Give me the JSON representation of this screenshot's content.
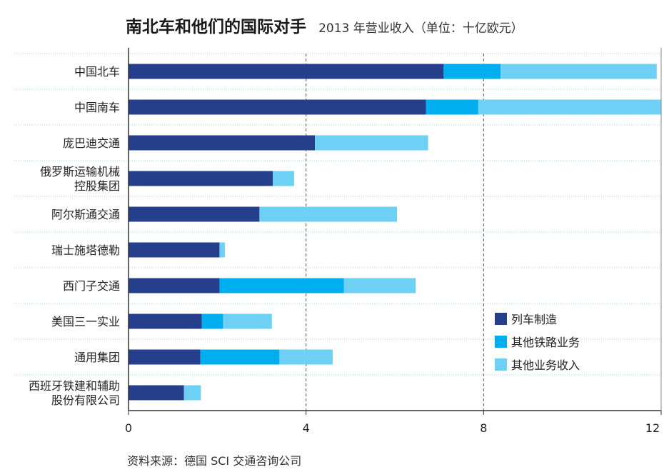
{
  "title": "南北车和他们的国际对手",
  "subtitle": "2013 年营业收入（单位：十亿欧元）",
  "source": "资料来源：德国 SCI 交通咨询公司",
  "colors": {
    "train": "#253f8c",
    "rail": "#00aeef",
    "other": "#6fd0f6",
    "grid": "#9dd6ee",
    "axis": "#333333"
  },
  "chart_data": {
    "type": "bar",
    "orientation": "horizontal",
    "stacked": true,
    "title": "南北车和他们的国际对手",
    "subtitle": "2013 年营业收入（单位：十亿欧元）",
    "xlim": [
      0,
      12
    ],
    "xticks": [
      "0",
      "4",
      "8",
      "12"
    ],
    "xtick_values": [
      0,
      4,
      8,
      12
    ],
    "legend_position": "bottom-right",
    "categories": [
      [
        "中国北车"
      ],
      [
        "中国南车"
      ],
      [
        "庞巴迪交通"
      ],
      [
        "俄罗斯运输机械",
        "控股集团"
      ],
      [
        "阿尔斯通交通"
      ],
      [
        "瑞士施塔德勒"
      ],
      [
        "西门子交通"
      ],
      [
        "美国三一实业"
      ],
      [
        "通用集团"
      ],
      [
        "西班牙铁建和辅助",
        "股份有限公司"
      ]
    ],
    "series": [
      {
        "name": "列车制造",
        "color": "#253f8c",
        "values": [
          7.1,
          6.7,
          4.2,
          3.25,
          2.95,
          2.05,
          2.05,
          1.65,
          1.62,
          1.25
        ]
      },
      {
        "name": "其他铁路业务",
        "color": "#00aeef",
        "values": [
          1.28,
          1.18,
          0,
          0,
          0,
          0,
          2.8,
          0.48,
          1.78,
          0
        ]
      },
      {
        "name": "其他业务收入",
        "color": "#6fd0f6",
        "values": [
          3.52,
          4.12,
          2.55,
          0.48,
          3.1,
          0.12,
          1.62,
          1.1,
          1.2,
          0.38
        ]
      }
    ]
  }
}
